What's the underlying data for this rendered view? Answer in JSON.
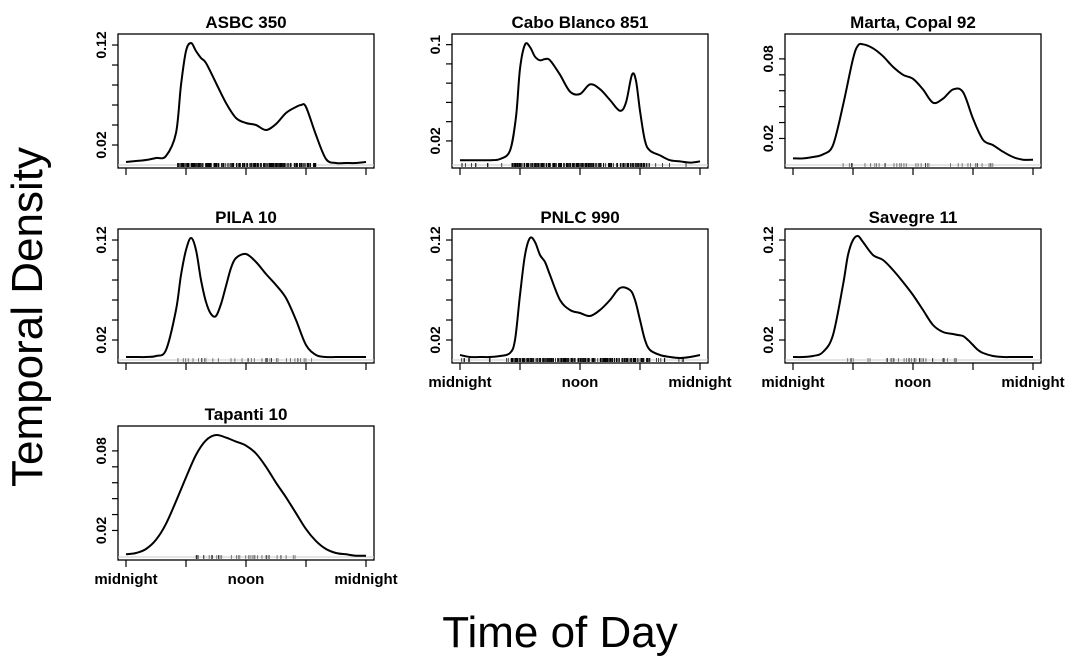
{
  "figure": {
    "ylabel": "Temporal Density",
    "xlabel": "Time of Day"
  },
  "chart_data": [
    {
      "type": "line",
      "title": "ASBC 350",
      "ylim": [
        0,
        0.13
      ],
      "yticks": [
        0.02,
        0.12
      ],
      "x_axis_labels_shown": false,
      "x_ticks_hours": [
        0,
        6,
        12,
        18,
        24
      ],
      "x_tick_labels": [
        "midnight",
        "",
        "noon",
        "",
        "midnight"
      ],
      "x": [
        0,
        1,
        2,
        3,
        4,
        5,
        5.5,
        6,
        6.5,
        7,
        7.5,
        8,
        9,
        10,
        11,
        12,
        13,
        14,
        15,
        16,
        17,
        17.5,
        18,
        19,
        20,
        21,
        22,
        23,
        24
      ],
      "y": [
        0.003,
        0.004,
        0.005,
        0.007,
        0.009,
        0.032,
        0.08,
        0.114,
        0.122,
        0.114,
        0.107,
        0.102,
        0.082,
        0.062,
        0.047,
        0.042,
        0.04,
        0.035,
        0.041,
        0.052,
        0.058,
        0.06,
        0.058,
        0.03,
        0.006,
        0.002,
        0.002,
        0.002,
        0.003
      ],
      "rug": {
        "density": "dense",
        "hours": [
          5,
          19
        ]
      }
    },
    {
      "type": "line",
      "title": "Cabo Blanco 851",
      "ylim": [
        0,
        0.108
      ],
      "yticks": [
        0.02,
        0.1
      ],
      "x_axis_labels_shown": false,
      "x_ticks_hours": [
        0,
        6,
        12,
        18,
        24
      ],
      "x_tick_labels": [
        "midnight",
        "",
        "noon",
        "",
        "midnight"
      ],
      "x": [
        0,
        1,
        2,
        3,
        4,
        5,
        5.6,
        6,
        6.5,
        7,
        7.5,
        8,
        8.5,
        9,
        10,
        11,
        12,
        13,
        14,
        15,
        16,
        16.6,
        17.2,
        17.6,
        18,
        18.5,
        19,
        20,
        21,
        22,
        23,
        24
      ],
      "y": [
        0.004,
        0.004,
        0.004,
        0.004,
        0.005,
        0.012,
        0.04,
        0.08,
        0.1,
        0.098,
        0.09,
        0.087,
        0.088,
        0.087,
        0.075,
        0.061,
        0.059,
        0.067,
        0.063,
        0.054,
        0.045,
        0.052,
        0.075,
        0.07,
        0.045,
        0.02,
        0.012,
        0.008,
        0.004,
        0.003,
        0.002,
        0.003
      ],
      "rug": {
        "density": "dense",
        "hours": [
          0,
          24
        ]
      }
    },
    {
      "type": "line",
      "title": "Marta, Copal 92",
      "ylim": [
        0,
        0.098
      ],
      "yticks": [
        0.02,
        0.08
      ],
      "x_axis_labels_shown": false,
      "x_ticks_hours": [
        0,
        6,
        12,
        18,
        24
      ],
      "x_tick_labels": [
        "midnight",
        "",
        "noon",
        "",
        "midnight"
      ],
      "x": [
        0,
        1,
        2,
        3,
        4,
        5,
        6,
        6.5,
        7,
        8,
        9,
        10,
        11,
        12,
        13,
        14,
        15,
        16,
        17,
        18,
        19,
        20,
        21,
        22,
        23,
        24
      ],
      "y": [
        0.005,
        0.005,
        0.006,
        0.008,
        0.015,
        0.045,
        0.08,
        0.09,
        0.091,
        0.088,
        0.082,
        0.074,
        0.068,
        0.065,
        0.057,
        0.047,
        0.05,
        0.057,
        0.055,
        0.035,
        0.019,
        0.015,
        0.01,
        0.006,
        0.004,
        0.004
      ],
      "rug": {
        "density": "sparse",
        "hours": [
          5,
          20
        ]
      }
    },
    {
      "type": "line",
      "title": "PILA 10",
      "ylim": [
        0,
        0.13
      ],
      "yticks": [
        0.02,
        0.12
      ],
      "x_axis_labels_shown": false,
      "x_ticks_hours": [
        0,
        6,
        12,
        18,
        24
      ],
      "x_tick_labels": [
        "midnight",
        "",
        "noon",
        "",
        "midnight"
      ],
      "x": [
        0,
        1,
        2,
        3,
        4,
        5,
        5.5,
        6,
        6.5,
        7,
        7.5,
        8,
        8.5,
        9,
        9.5,
        10,
        10.5,
        11,
        12,
        13,
        14,
        15,
        16,
        17,
        18,
        19,
        20,
        21,
        22,
        23,
        24
      ],
      "y": [
        0.003,
        0.003,
        0.003,
        0.004,
        0.01,
        0.05,
        0.085,
        0.11,
        0.122,
        0.11,
        0.08,
        0.058,
        0.046,
        0.044,
        0.056,
        0.074,
        0.092,
        0.102,
        0.106,
        0.098,
        0.086,
        0.075,
        0.062,
        0.04,
        0.015,
        0.005,
        0.003,
        0.003,
        0.003,
        0.003,
        0.003
      ],
      "rug": {
        "density": "sparse",
        "hours": [
          5,
          19
        ]
      }
    },
    {
      "type": "line",
      "title": "PNLC 990",
      "ylim": [
        0,
        0.13
      ],
      "yticks": [
        0.02,
        0.12
      ],
      "x_axis_labels_shown": true,
      "x_ticks_hours": [
        0,
        6,
        12,
        18,
        24
      ],
      "x_tick_labels": [
        "midnight",
        "",
        "noon",
        "",
        "midnight"
      ],
      "x": [
        0,
        1,
        2,
        3,
        4,
        5,
        5.5,
        6,
        6.5,
        7,
        7.5,
        8,
        8.5,
        9,
        10,
        11,
        12,
        13,
        14,
        15,
        16,
        17,
        17.5,
        18,
        18.5,
        19,
        20,
        21,
        22,
        23,
        24
      ],
      "y": [
        0.005,
        0.003,
        0.003,
        0.003,
        0.004,
        0.007,
        0.02,
        0.065,
        0.105,
        0.122,
        0.118,
        0.105,
        0.098,
        0.085,
        0.06,
        0.05,
        0.047,
        0.044,
        0.05,
        0.06,
        0.072,
        0.07,
        0.06,
        0.04,
        0.02,
        0.01,
        0.005,
        0.003,
        0.002,
        0.003,
        0.005
      ],
      "rug": {
        "density": "dense",
        "hours": [
          0,
          24
        ]
      }
    },
    {
      "type": "line",
      "title": "Savegre 11",
      "ylim": [
        0,
        0.13
      ],
      "yticks": [
        0.02,
        0.12
      ],
      "x_axis_labels_shown": true,
      "x_ticks_hours": [
        0,
        6,
        12,
        18,
        24
      ],
      "x_tick_labels": [
        "midnight",
        "",
        "noon",
        "",
        "midnight"
      ],
      "x": [
        0,
        1,
        2,
        3,
        4,
        5,
        5.5,
        6,
        6.5,
        7,
        8,
        9,
        10,
        11,
        12,
        13,
        14,
        15,
        16,
        16.5,
        17,
        17.5,
        18,
        18.5,
        19,
        20,
        21,
        22,
        23,
        24
      ],
      "y": [
        0.003,
        0.003,
        0.004,
        0.008,
        0.025,
        0.075,
        0.105,
        0.12,
        0.124,
        0.118,
        0.105,
        0.1,
        0.09,
        0.078,
        0.065,
        0.05,
        0.035,
        0.028,
        0.026,
        0.025,
        0.024,
        0.02,
        0.015,
        0.01,
        0.007,
        0.004,
        0.003,
        0.003,
        0.003,
        0.003
      ],
      "rug": {
        "density": "sparse",
        "hours": [
          5,
          17
        ]
      }
    },
    {
      "type": "line",
      "title": "Tapanti 10",
      "ylim": [
        0,
        0.098
      ],
      "yticks": [
        0.02,
        0.08
      ],
      "x_axis_labels_shown": true,
      "x_ticks_hours": [
        0,
        6,
        12,
        18,
        24
      ],
      "x_tick_labels": [
        "midnight",
        "",
        "noon",
        "",
        "midnight"
      ],
      "x": [
        0,
        1,
        2,
        3,
        4,
        5,
        6,
        7,
        8,
        9,
        10,
        11,
        12,
        13,
        14,
        15,
        16,
        17,
        18,
        19,
        20,
        21,
        22,
        23,
        24
      ],
      "y": [
        0.002,
        0.003,
        0.006,
        0.013,
        0.025,
        0.042,
        0.06,
        0.077,
        0.088,
        0.092,
        0.09,
        0.087,
        0.084,
        0.078,
        0.068,
        0.056,
        0.045,
        0.033,
        0.021,
        0.012,
        0.006,
        0.003,
        0.002,
        0.001,
        0.001
      ],
      "rug": {
        "density": "sparse",
        "hours": [
          7,
          17
        ]
      }
    }
  ]
}
